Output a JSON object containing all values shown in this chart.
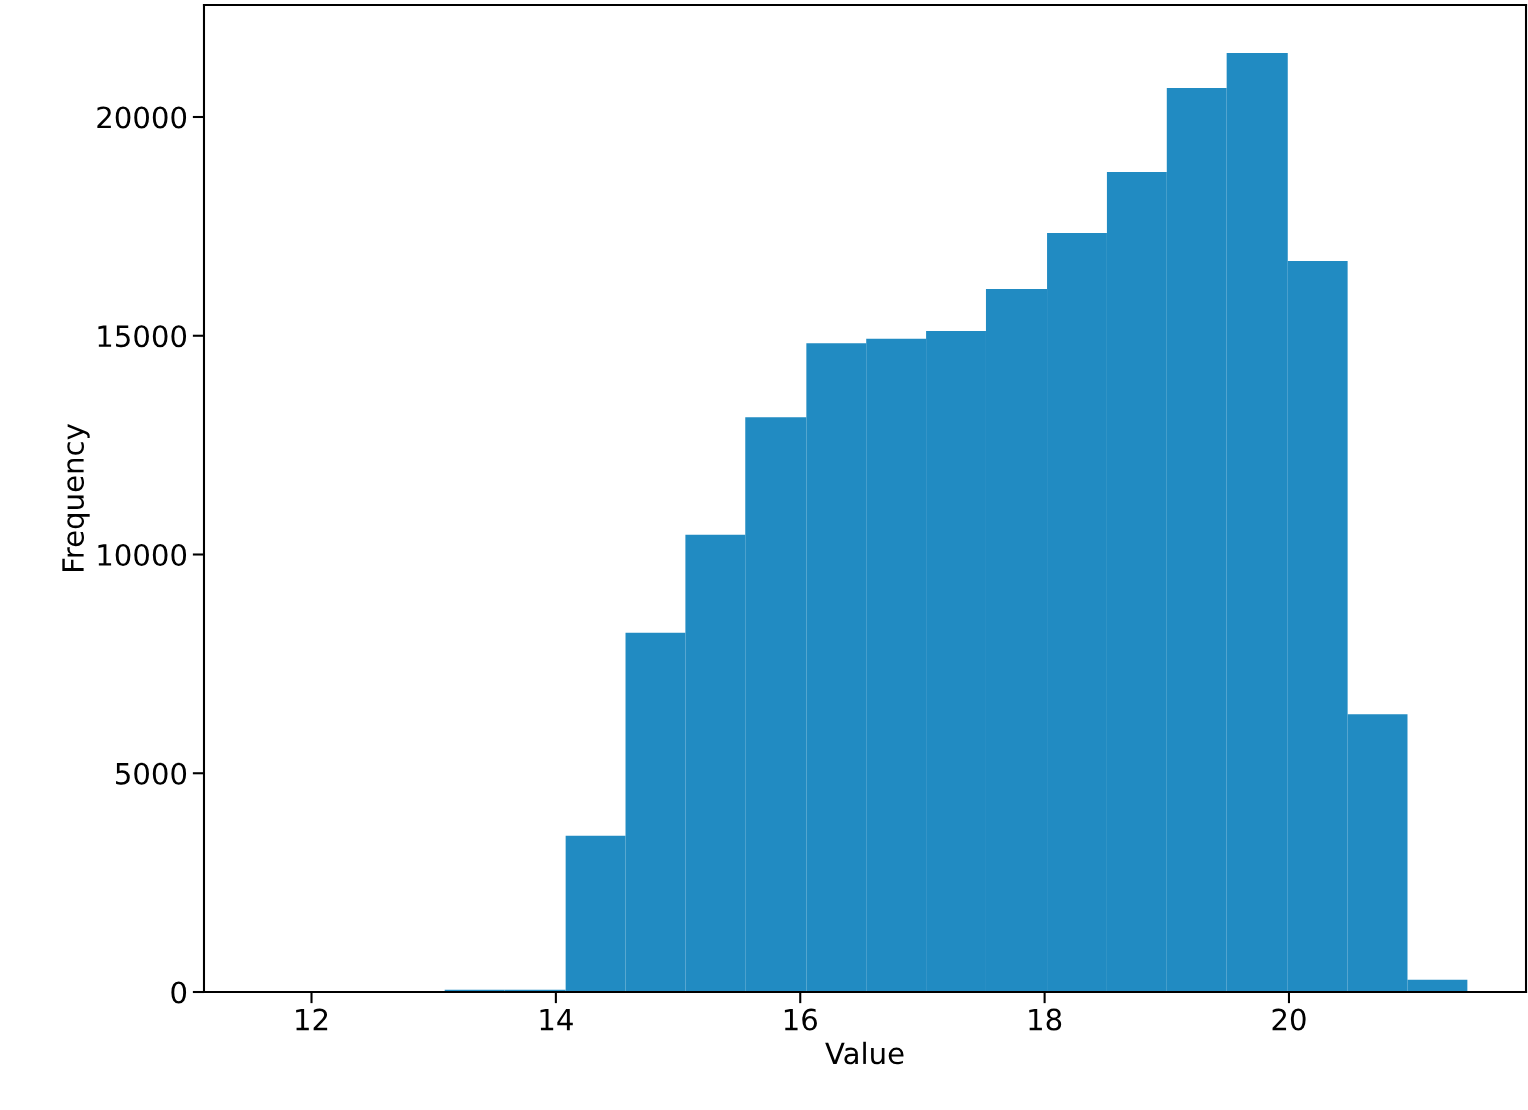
{
  "chart_data": {
    "type": "histogram",
    "xlabel": "Value",
    "ylabel": "Frequency",
    "bins": [
      13.09,
      13.58,
      14.08,
      14.57,
      15.06,
      15.55,
      16.05,
      16.54,
      17.03,
      17.52,
      18.02,
      18.51,
      19.0,
      19.49,
      19.99,
      20.48,
      20.97,
      21.46
    ],
    "values": [
      50,
      50,
      3570,
      8210,
      10450,
      13140,
      14830,
      14930,
      15110,
      16070,
      17350,
      18740,
      20660,
      21460,
      16710,
      6350,
      280
    ],
    "color": "#218bc2",
    "xlim": [
      11.12,
      21.94
    ],
    "xticks": [
      12,
      14,
      16,
      18,
      20
    ],
    "ylim": [
      0,
      22560
    ],
    "yticks": [
      0,
      5000,
      10000,
      15000,
      20000
    ],
    "grid": false
  }
}
